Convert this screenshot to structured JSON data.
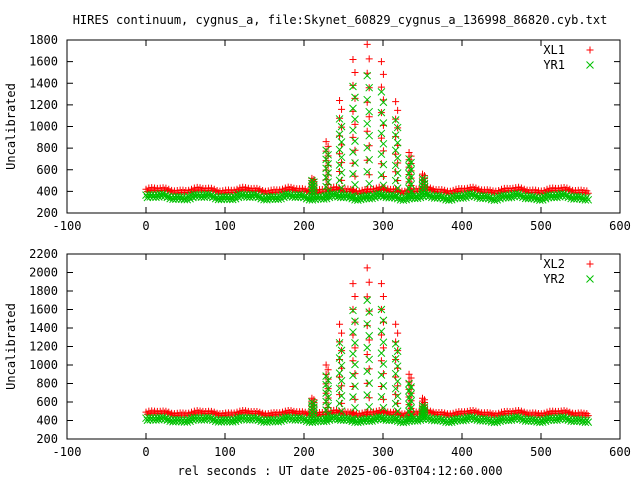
{
  "title": "HIRES continuum, cygnus_a, file:Skynet_60829_cygnus_a_136998_86820.cyb.txt",
  "xlabel": "rel seconds : UT date 2025-06-03T04:12:60.000",
  "colors": {
    "red": "#ff0000",
    "green": "#00c000",
    "frame": "#000000"
  },
  "chart_data": [
    {
      "type": "scatter",
      "title": "",
      "xlabel": "",
      "ylabel": "Uncalibrated",
      "xlim": [
        -100,
        600
      ],
      "ylim": [
        200,
        1800
      ],
      "xticks": [
        -100,
        0,
        100,
        200,
        300,
        400,
        500,
        600
      ],
      "yticks": [
        200,
        400,
        600,
        800,
        1000,
        1200,
        1400,
        1600,
        1800
      ],
      "legend_position": "top-right",
      "grid": false,
      "series": [
        {
          "name": "XL1",
          "marker": "plus",
          "color": "#ff0000",
          "baseline": 420,
          "x_range": [
            0,
            560
          ],
          "peak": [
            [
              210,
              520
            ],
            [
              228,
              860
            ],
            [
              245,
              1240
            ],
            [
              262,
              1620
            ],
            [
              280,
              1760
            ],
            [
              298,
              1600
            ],
            [
              316,
              1230
            ],
            [
              333,
              760
            ],
            [
              350,
              560
            ]
          ]
        },
        {
          "name": "YR1",
          "marker": "cross",
          "color": "#00c000",
          "baseline": 360,
          "x_range": [
            0,
            560
          ],
          "peak": [
            [
              210,
              500
            ],
            [
              228,
              780
            ],
            [
              245,
              1070
            ],
            [
              262,
              1370
            ],
            [
              280,
              1470
            ],
            [
              298,
              1320
            ],
            [
              316,
              1060
            ],
            [
              333,
              700
            ],
            [
              350,
              520
            ]
          ]
        }
      ]
    },
    {
      "type": "scatter",
      "title": "",
      "xlabel": "rel seconds : UT date 2025-06-03T04:12:60.000",
      "ylabel": "Uncalibrated",
      "xlim": [
        -100,
        600
      ],
      "ylim": [
        200,
        2200
      ],
      "xticks": [
        -100,
        0,
        100,
        200,
        300,
        400,
        500,
        600
      ],
      "yticks": [
        200,
        400,
        600,
        800,
        1000,
        1200,
        1400,
        1600,
        1800,
        2000,
        2200
      ],
      "legend_position": "top-right",
      "grid": false,
      "series": [
        {
          "name": "XL2",
          "marker": "plus",
          "color": "#ff0000",
          "baseline": 490,
          "x_range": [
            0,
            560
          ],
          "peak": [
            [
              210,
              640
            ],
            [
              228,
              1000
            ],
            [
              245,
              1440
            ],
            [
              262,
              1880
            ],
            [
              280,
              2050
            ],
            [
              298,
              1880
            ],
            [
              316,
              1440
            ],
            [
              333,
              900
            ],
            [
              350,
              640
            ]
          ]
        },
        {
          "name": "YR2",
          "marker": "cross",
          "color": "#00c000",
          "baseline": 420,
          "x_range": [
            0,
            560
          ],
          "peak": [
            [
              210,
              600
            ],
            [
              228,
              880
            ],
            [
              245,
              1240
            ],
            [
              262,
              1590
            ],
            [
              280,
              1700
            ],
            [
              298,
              1600
            ],
            [
              316,
              1230
            ],
            [
              333,
              800
            ],
            [
              350,
              560
            ]
          ]
        }
      ]
    }
  ]
}
